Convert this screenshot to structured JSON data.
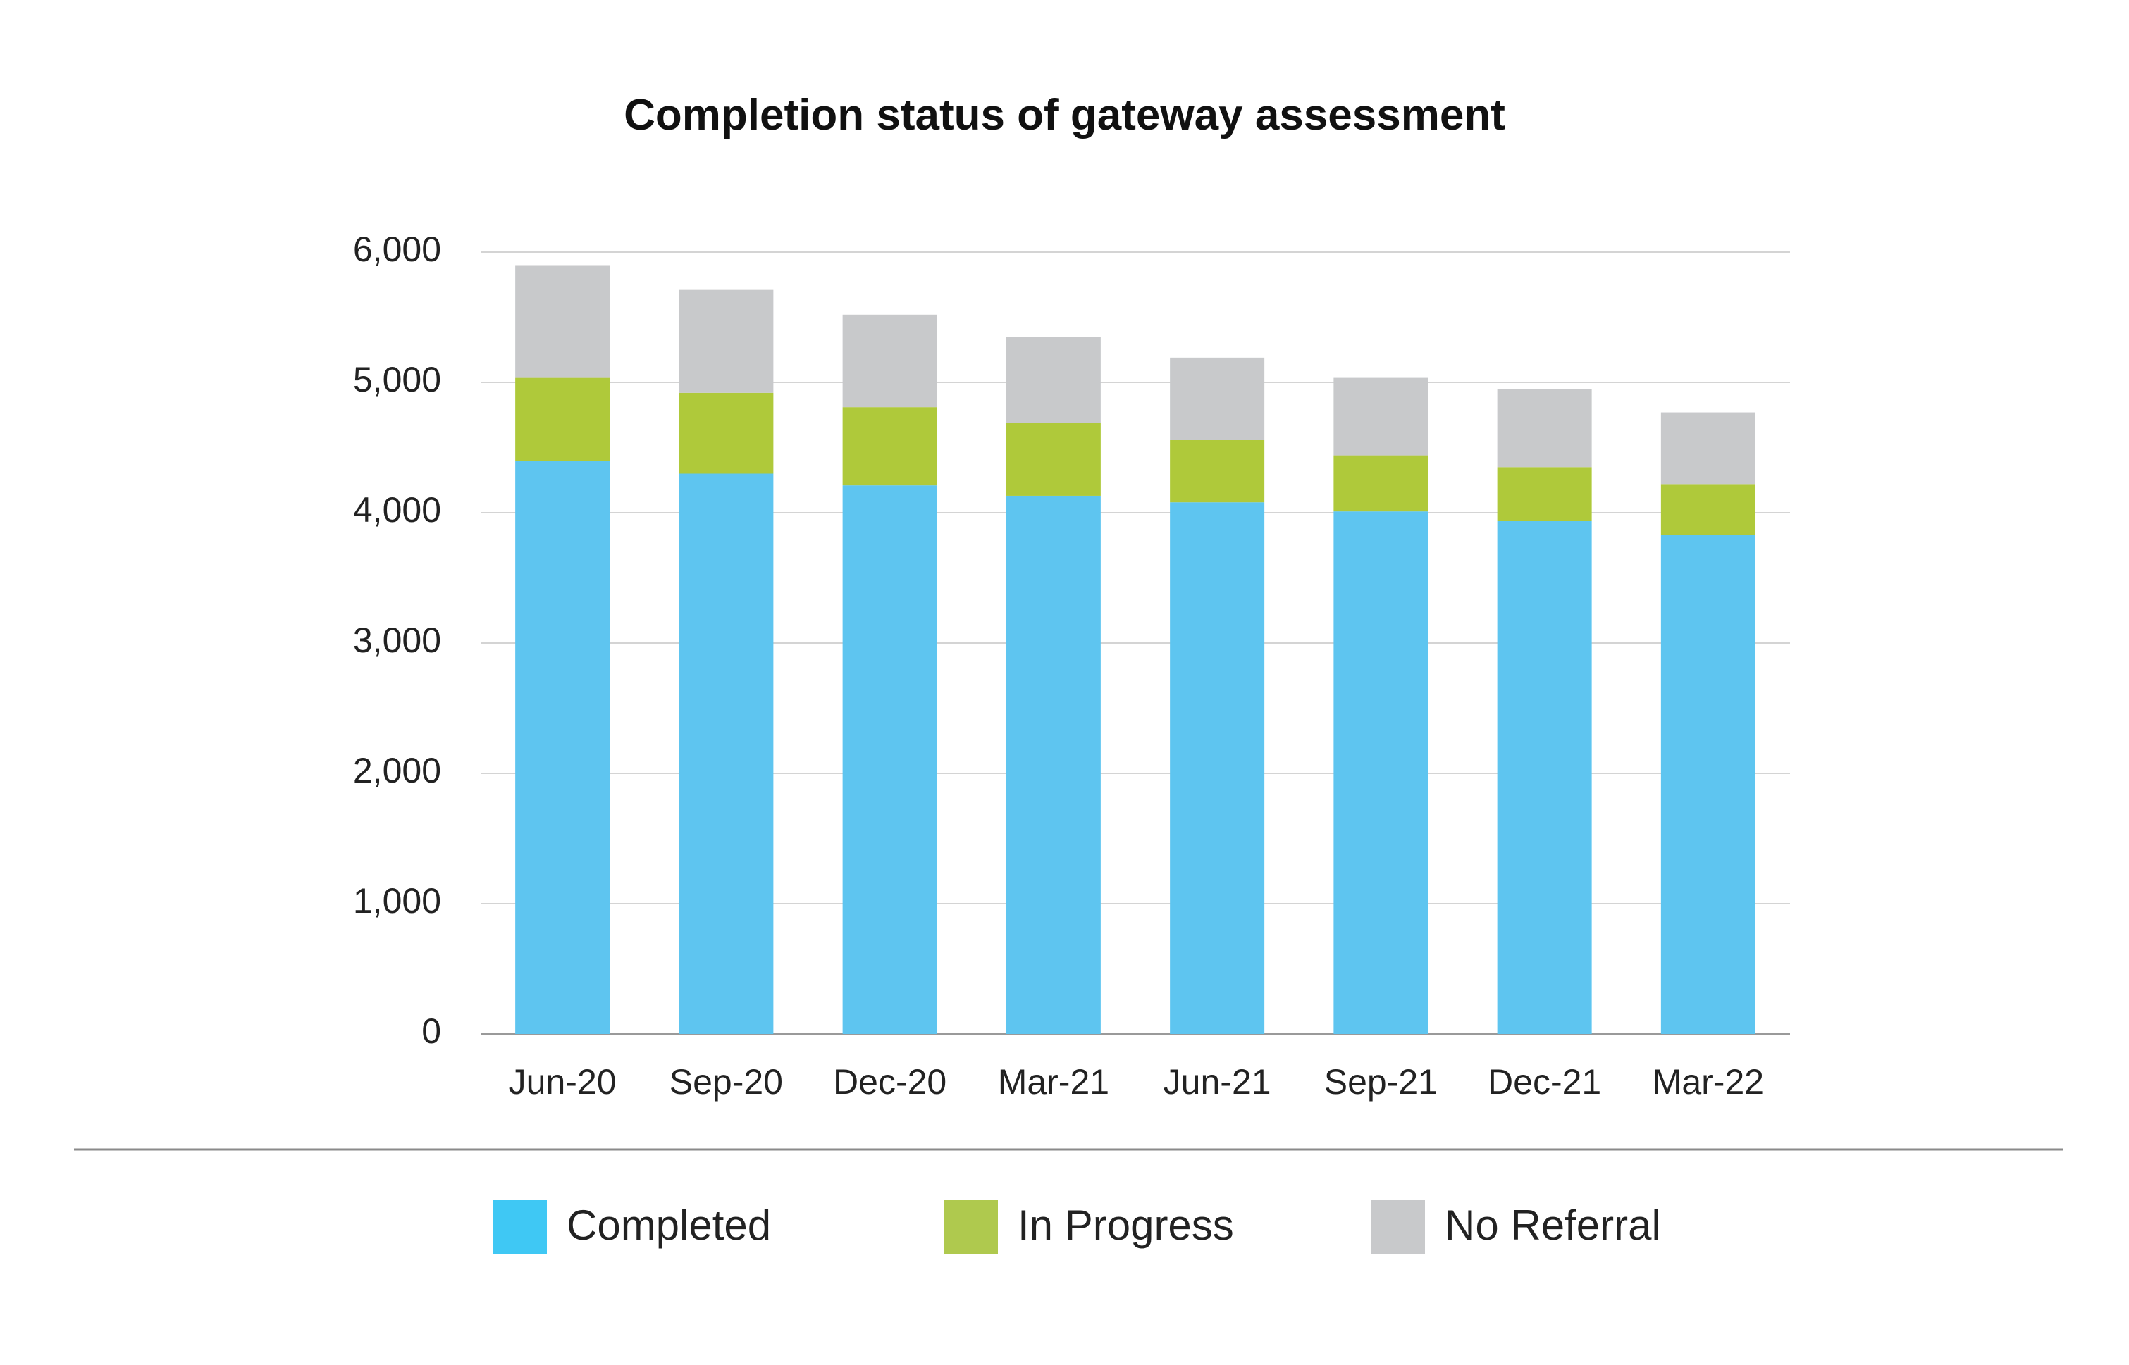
{
  "chart_data": {
    "type": "bar",
    "stacked": true,
    "title": "Completion status of gateway assessment",
    "xlabel": "",
    "ylabel": "",
    "ylim": [
      0,
      6000
    ],
    "yticks": [
      0,
      1000,
      2000,
      3000,
      4000,
      5000,
      6000
    ],
    "ytick_labels": [
      "0",
      "1,000",
      "2,000",
      "3,000",
      "4,000",
      "5,000",
      "6,000"
    ],
    "grid": true,
    "legend_position": "bottom",
    "categories": [
      "Jun-20",
      "Sep-20",
      "Dec-20",
      "Mar-21",
      "Jun-21",
      "Sep-21",
      "Dec-21",
      "Mar-22"
    ],
    "series": [
      {
        "name": "Completed",
        "color": "#5ec5f0",
        "legend_color": "#3fc8f4",
        "values": [
          4400,
          4300,
          4210,
          4130,
          4080,
          4010,
          3940,
          3830
        ]
      },
      {
        "name": "In Progress",
        "color": "#afc93a",
        "legend_color": "#afc94e",
        "values": [
          640,
          620,
          600,
          560,
          480,
          430,
          410,
          390
        ]
      },
      {
        "name": "No Referral",
        "color": "#c8c9cb",
        "legend_color": "#c8c9cb",
        "values": [
          860,
          790,
          710,
          660,
          630,
          600,
          600,
          550
        ]
      }
    ]
  }
}
